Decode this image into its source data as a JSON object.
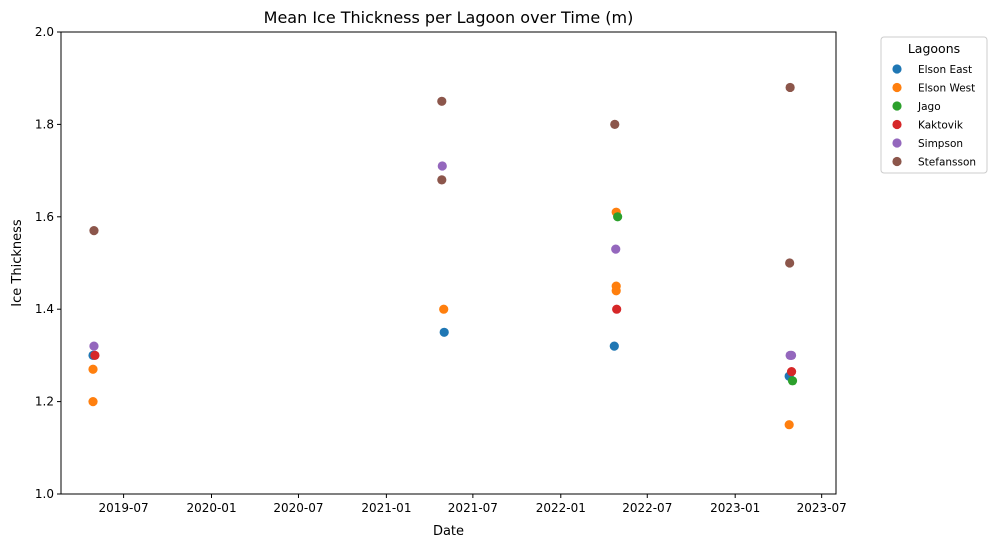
{
  "chart_data": {
    "type": "scatter",
    "title": "Mean Ice Thickness per Lagoon over Time (m)",
    "xlabel": "Date",
    "ylabel": "Ice Thickness",
    "ylim": [
      1.0,
      2.0
    ],
    "xlim": [
      "2019-02-20",
      "2023-07-31"
    ],
    "y_ticks": [
      "1.0",
      "1.2",
      "1.4",
      "1.6",
      "1.8",
      "2.0"
    ],
    "x_ticks": [
      {
        "date": "2019-07-01",
        "label": "2019-07"
      },
      {
        "date": "2020-01-01",
        "label": "2020-01"
      },
      {
        "date": "2020-07-01",
        "label": "2020-07"
      },
      {
        "date": "2021-01-01",
        "label": "2021-01"
      },
      {
        "date": "2021-07-01",
        "label": "2021-07"
      },
      {
        "date": "2022-01-01",
        "label": "2022-01"
      },
      {
        "date": "2022-07-01",
        "label": "2022-07"
      },
      {
        "date": "2023-01-01",
        "label": "2023-01"
      },
      {
        "date": "2023-07-01",
        "label": "2023-07"
      }
    ],
    "grid": false,
    "legend": {
      "title": "Lagoons",
      "placement": "outside-right"
    },
    "series": [
      {
        "name": "Elson East",
        "color": "#1f77b4",
        "points": [
          {
            "x": "2019-04-28",
            "y": 1.3
          },
          {
            "x": "2021-05-02",
            "y": 1.35
          },
          {
            "x": "2022-04-23",
            "y": 1.32
          },
          {
            "x": "2023-04-24",
            "y": 1.255
          }
        ]
      },
      {
        "name": "Elson West",
        "color": "#ff7f0e",
        "points": [
          {
            "x": "2019-04-28",
            "y": 1.27
          },
          {
            "x": "2019-04-28",
            "y": 1.2
          },
          {
            "x": "2021-05-01",
            "y": 1.4
          },
          {
            "x": "2022-04-27",
            "y": 1.61
          },
          {
            "x": "2022-04-27",
            "y": 1.45
          },
          {
            "x": "2022-04-27",
            "y": 1.44
          },
          {
            "x": "2023-04-24",
            "y": 1.15
          }
        ]
      },
      {
        "name": "Jago",
        "color": "#2ca02c",
        "points": [
          {
            "x": "2022-04-30",
            "y": 1.6
          },
          {
            "x": "2023-05-01",
            "y": 1.245
          }
        ]
      },
      {
        "name": "Kaktovik",
        "color": "#d62728",
        "points": [
          {
            "x": "2019-05-02",
            "y": 1.3
          },
          {
            "x": "2022-04-28",
            "y": 1.4
          },
          {
            "x": "2023-04-29",
            "y": 1.265
          }
        ]
      },
      {
        "name": "Simpson",
        "color": "#9467bd",
        "points": [
          {
            "x": "2019-04-30",
            "y": 1.32
          },
          {
            "x": "2021-04-28",
            "y": 1.71
          },
          {
            "x": "2022-04-26",
            "y": 1.53
          },
          {
            "x": "2023-04-26",
            "y": 1.3
          },
          {
            "x": "2023-04-29",
            "y": 1.3
          }
        ]
      },
      {
        "name": "Stefansson",
        "color": "#8c564b",
        "points": [
          {
            "x": "2019-04-30",
            "y": 1.57
          },
          {
            "x": "2021-04-27",
            "y": 1.85
          },
          {
            "x": "2021-04-27",
            "y": 1.68
          },
          {
            "x": "2022-04-24",
            "y": 1.8
          },
          {
            "x": "2023-04-26",
            "y": 1.88
          },
          {
            "x": "2023-04-25",
            "y": 1.5
          }
        ]
      }
    ]
  }
}
